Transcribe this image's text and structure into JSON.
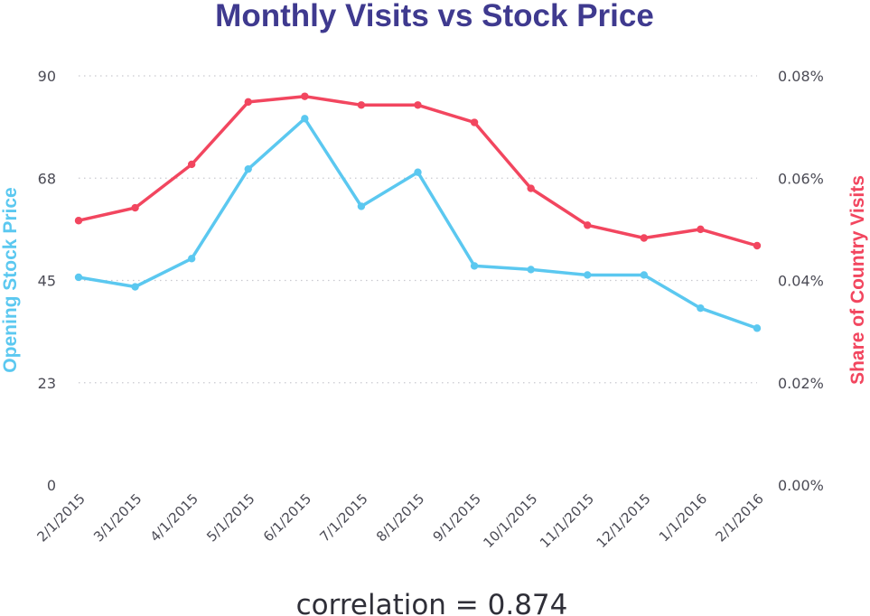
{
  "chart_data": {
    "type": "line",
    "title": "Monthly Visits vs Stock Price",
    "x": [
      "2/1/2015",
      "3/1/2015",
      "4/1/2015",
      "5/1/2015",
      "6/1/2015",
      "7/1/2015",
      "8/1/2015",
      "9/1/2015",
      "10/1/2015",
      "11/1/2015",
      "12/1/2015",
      "1/1/2016",
      "2/1/2016"
    ],
    "y_left": {
      "label": "Opening Stock Price",
      "ticks": [
        "0",
        "23",
        "45",
        "68",
        "90"
      ],
      "tick_values": [
        0,
        22.5,
        45,
        67.5,
        90
      ],
      "ylim": [
        0,
        90
      ]
    },
    "y_right": {
      "label": "Share of Country Visits",
      "ticks": [
        "0.00%",
        "0.02%",
        "0.04%",
        "0.06%",
        "0.08%"
      ],
      "tick_values": [
        0,
        0.02,
        0.04,
        0.06,
        0.08
      ],
      "ylim": [
        0,
        0.08
      ]
    },
    "series": [
      {
        "name": "Opening Stock Price",
        "axis": "left",
        "color": "#5bc8f0",
        "values": [
          45.7,
          43.6,
          49.8,
          69.5,
          80.6,
          61.3,
          68.8,
          48.2,
          47.4,
          46.2,
          46.2,
          38.9,
          34.5
        ]
      },
      {
        "name": "Share of Country Visits",
        "axis": "right",
        "color": "#f2465f",
        "values": [
          0.0517,
          0.0542,
          0.0627,
          0.0749,
          0.076,
          0.0743,
          0.0743,
          0.0709,
          0.058,
          0.0508,
          0.0483,
          0.05,
          0.0468
        ]
      }
    ],
    "grid": true,
    "legend": "none"
  },
  "footer": {
    "correlation_text": "correlation = 0.874"
  }
}
